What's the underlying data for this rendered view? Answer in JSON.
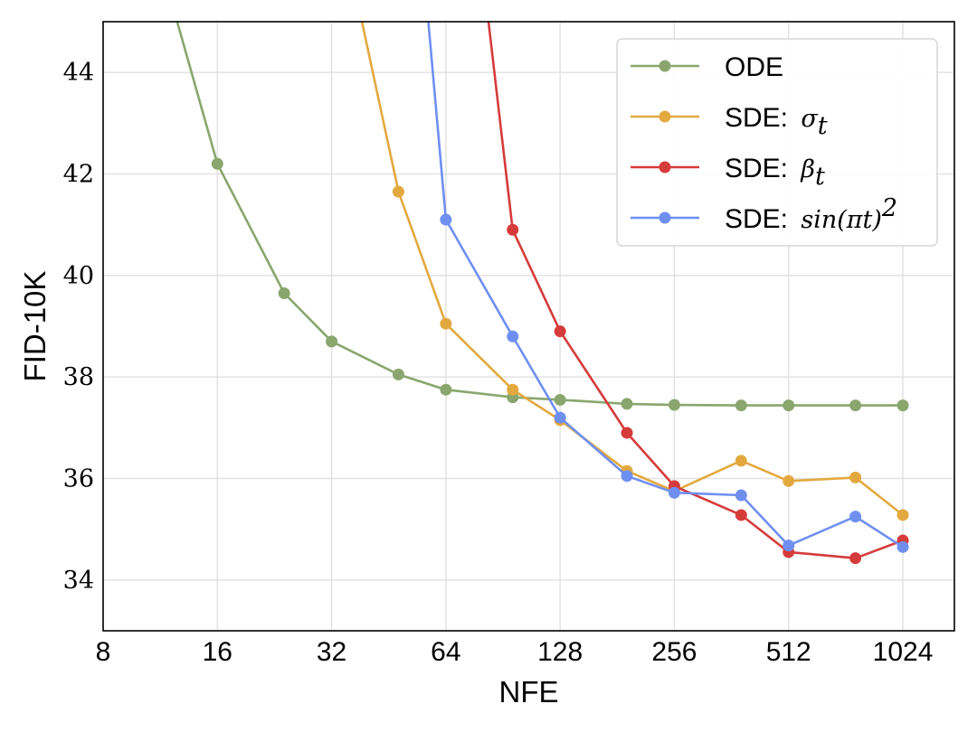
{
  "chart_data": {
    "type": "line",
    "xlabel": "NFE",
    "ylabel": "FID-10K",
    "x_scale": "log2",
    "xlim": [
      8,
      1400
    ],
    "ylim": [
      33,
      45
    ],
    "x_ticks": [
      8,
      16,
      32,
      64,
      128,
      256,
      512,
      1024
    ],
    "x_tick_labels": [
      "8",
      "16",
      "32",
      "64",
      "128",
      "256",
      "512",
      "1024"
    ],
    "y_ticks": [
      34,
      36,
      38,
      40,
      42,
      44
    ],
    "y_tick_labels": [
      "34",
      "36",
      "38",
      "40",
      "42",
      "44"
    ],
    "grid": true,
    "legend_position": "top-right",
    "series": [
      {
        "name": "ODE",
        "name_prefix": "ODE",
        "name_math": "",
        "color": "#8aa66e",
        "points": [
          [
            12,
            45.5
          ],
          [
            16,
            42.2
          ],
          [
            24,
            39.65
          ],
          [
            32,
            38.7
          ],
          [
            48,
            38.05
          ],
          [
            64,
            37.75
          ],
          [
            96,
            37.6
          ],
          [
            128,
            37.55
          ],
          [
            192,
            37.47
          ],
          [
            256,
            37.45
          ],
          [
            384,
            37.44
          ],
          [
            512,
            37.44
          ],
          [
            768,
            37.44
          ],
          [
            1024,
            37.44
          ]
        ]
      },
      {
        "name": "SDE: σt",
        "name_prefix": "SDE: ",
        "name_math": "σ",
        "name_sub": "t",
        "color": "#e3a93f",
        "points": [
          [
            36,
            46.0
          ],
          [
            48,
            41.65
          ],
          [
            64,
            39.05
          ],
          [
            96,
            37.75
          ],
          [
            128,
            37.15
          ],
          [
            192,
            36.15
          ],
          [
            256,
            35.75
          ],
          [
            384,
            36.35
          ],
          [
            512,
            35.95
          ],
          [
            768,
            36.02
          ],
          [
            1024,
            35.28
          ]
        ]
      },
      {
        "name": "SDE: βt",
        "name_prefix": "SDE: ",
        "name_math": "β",
        "name_sub": "t",
        "color": "#d63b3b",
        "points": [
          [
            80,
            46.0
          ],
          [
            96,
            40.9
          ],
          [
            128,
            38.9
          ],
          [
            192,
            36.9
          ],
          [
            256,
            35.85
          ],
          [
            384,
            35.28
          ],
          [
            512,
            34.55
          ],
          [
            768,
            34.43
          ],
          [
            1024,
            34.78
          ]
        ]
      },
      {
        "name": "SDE: sin(πt)²",
        "name_prefix": "SDE: ",
        "name_math": "sin(πt)",
        "name_sup": "2",
        "color": "#6f8ff0",
        "points": [
          [
            56,
            46.0
          ],
          [
            64,
            41.1
          ],
          [
            96,
            38.8
          ],
          [
            128,
            37.2
          ],
          [
            192,
            36.05
          ],
          [
            256,
            35.72
          ],
          [
            384,
            35.67
          ],
          [
            512,
            34.68
          ],
          [
            768,
            35.25
          ],
          [
            1024,
            34.65
          ]
        ]
      }
    ]
  }
}
